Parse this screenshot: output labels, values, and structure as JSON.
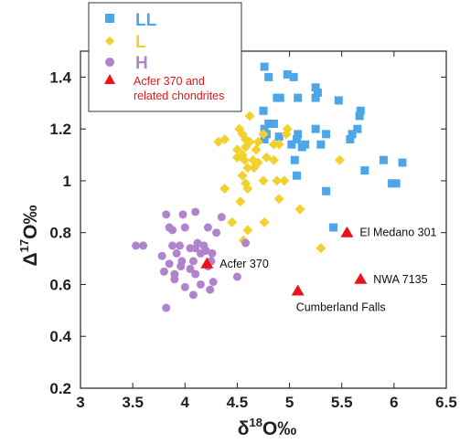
{
  "chart_data": {
    "type": "scatter",
    "xlim": [
      3,
      6.5
    ],
    "ylim": [
      0.2,
      1.5
    ],
    "x_ticks": [
      "3",
      "3.5",
      "4",
      "4.5",
      "5",
      "5.5",
      "6",
      "6.5"
    ],
    "y_ticks": [
      "0.2",
      "0.4",
      "0.6",
      "0.8",
      "1",
      "1.2",
      "1.4"
    ],
    "xlabel": {
      "symbol": "δ",
      "sup": "18",
      "text": "O‰"
    },
    "ylabel": {
      "symbol": "Δ",
      "sup": "17",
      "text": "O‰"
    },
    "grid": false,
    "legend_position": "top-left",
    "series": [
      {
        "name": "LL",
        "marker": "square",
        "color": "#4da6e8",
        "points": [
          [
            4.76,
            1.44
          ],
          [
            4.8,
            1.4
          ],
          [
            4.91,
            1.32
          ],
          [
            4.98,
            1.41
          ],
          [
            5.04,
            1.4
          ],
          [
            4.88,
            1.32
          ],
          [
            5.08,
            1.32
          ],
          [
            5.25,
            1.36
          ],
          [
            5.27,
            1.34
          ],
          [
            5.25,
            1.32
          ],
          [
            5.47,
            1.31
          ],
          [
            5.68,
            1.27
          ],
          [
            5.67,
            1.25
          ],
          [
            5.6,
            1.18
          ],
          [
            5.65,
            1.2
          ],
          [
            4.75,
            1.27
          ],
          [
            4.76,
            1.2
          ],
          [
            4.8,
            1.22
          ],
          [
            4.85,
            1.22
          ],
          [
            4.76,
            1.16
          ],
          [
            4.78,
            1.18
          ],
          [
            4.9,
            1.17
          ],
          [
            5.02,
            1.14
          ],
          [
            5.07,
            1.16
          ],
          [
            5.08,
            1.18
          ],
          [
            5.12,
            1.13
          ],
          [
            5.15,
            1.14
          ],
          [
            5.25,
            1.2
          ],
          [
            5.35,
            1.18
          ],
          [
            5.58,
            1.16
          ],
          [
            5.3,
            1.14
          ],
          [
            5.05,
            1.08
          ],
          [
            5.07,
            1.02
          ],
          [
            5.72,
            1.04
          ],
          [
            5.9,
            1.08
          ],
          [
            6.08,
            1.07
          ],
          [
            5.98,
            0.99
          ],
          [
            6.02,
            0.99
          ],
          [
            5.35,
            0.96
          ],
          [
            5.42,
            0.82
          ]
        ]
      },
      {
        "name": "L",
        "marker": "diamond",
        "color": "#f2d12e",
        "points": [
          [
            4.62,
            1.25
          ],
          [
            4.52,
            1.2
          ],
          [
            4.55,
            1.18
          ],
          [
            4.58,
            1.16
          ],
          [
            4.32,
            1.15
          ],
          [
            4.38,
            1.16
          ],
          [
            4.62,
            1.15
          ],
          [
            4.7,
            1.15
          ],
          [
            4.75,
            1.18
          ],
          [
            4.98,
            1.2
          ],
          [
            4.97,
            1.18
          ],
          [
            4.5,
            1.12
          ],
          [
            4.55,
            1.1
          ],
          [
            4.58,
            1.13
          ],
          [
            4.68,
            1.12
          ],
          [
            4.85,
            1.14
          ],
          [
            4.9,
            1.14
          ],
          [
            4.5,
            1.09
          ],
          [
            4.57,
            1.08
          ],
          [
            4.65,
            1.08
          ],
          [
            4.7,
            1.07
          ],
          [
            4.78,
            1.09
          ],
          [
            4.85,
            1.08
          ],
          [
            5.48,
            1.08
          ],
          [
            4.6,
            1.05
          ],
          [
            4.66,
            1.05
          ],
          [
            4.55,
            1.02
          ],
          [
            4.75,
            1.0
          ],
          [
            4.88,
            1.0
          ],
          [
            4.95,
            1.0
          ],
          [
            4.58,
            0.99
          ],
          [
            4.6,
            0.97
          ],
          [
            4.38,
            0.97
          ],
          [
            4.9,
            0.93
          ],
          [
            4.53,
            0.92
          ],
          [
            4.76,
            0.84
          ],
          [
            4.45,
            0.84
          ],
          [
            5.1,
            0.89
          ],
          [
            4.56,
            0.77
          ],
          [
            4.6,
            0.81
          ],
          [
            5.3,
            0.74
          ]
        ]
      },
      {
        "name": "H",
        "marker": "circle",
        "color": "#b084cc",
        "points": [
          [
            3.82,
            0.87
          ],
          [
            3.98,
            0.87
          ],
          [
            4.1,
            0.88
          ],
          [
            4.35,
            0.86
          ],
          [
            3.85,
            0.82
          ],
          [
            3.88,
            0.81
          ],
          [
            4.0,
            0.82
          ],
          [
            4.22,
            0.82
          ],
          [
            4.3,
            0.8
          ],
          [
            3.53,
            0.75
          ],
          [
            3.6,
            0.75
          ],
          [
            3.88,
            0.75
          ],
          [
            3.95,
            0.75
          ],
          [
            4.05,
            0.74
          ],
          [
            4.12,
            0.76
          ],
          [
            4.18,
            0.75
          ],
          [
            4.1,
            0.74
          ],
          [
            4.15,
            0.72
          ],
          [
            4.2,
            0.73
          ],
          [
            4.26,
            0.72
          ],
          [
            3.92,
            0.72
          ],
          [
            4.58,
            0.76
          ],
          [
            3.78,
            0.71
          ],
          [
            3.97,
            0.69
          ],
          [
            4.08,
            0.69
          ],
          [
            4.25,
            0.69
          ],
          [
            3.85,
            0.68
          ],
          [
            3.96,
            0.67
          ],
          [
            4.05,
            0.66
          ],
          [
            3.8,
            0.65
          ],
          [
            3.9,
            0.64
          ],
          [
            4.1,
            0.64
          ],
          [
            4.22,
            0.67
          ],
          [
            4.5,
            0.63
          ],
          [
            4.27,
            0.61
          ],
          [
            4.15,
            0.6
          ],
          [
            3.9,
            0.62
          ],
          [
            4.0,
            0.59
          ],
          [
            4.08,
            0.56
          ],
          [
            4.24,
            0.58
          ],
          [
            3.82,
            0.51
          ]
        ]
      },
      {
        "name": "Acfer 370 and related chondrites",
        "marker": "triangle",
        "color": "#e8141b",
        "points": [
          [
            4.21,
            0.68
          ],
          [
            5.55,
            0.8
          ],
          [
            5.68,
            0.62
          ],
          [
            5.08,
            0.575
          ]
        ]
      }
    ],
    "annotations": [
      {
        "text": "Acfer 370",
        "x": 4.21,
        "y": 0.68
      },
      {
        "text": "El Medano 301",
        "x": 5.55,
        "y": 0.8
      },
      {
        "text": "NWA 7135",
        "x": 5.68,
        "y": 0.62
      },
      {
        "text": "Cumberland Falls",
        "x": 5.08,
        "y": 0.575
      }
    ],
    "legend": [
      {
        "label": "LL",
        "color": "#4da6e8",
        "marker": "square"
      },
      {
        "label": "L",
        "color": "#f2d12e",
        "marker": "diamond"
      },
      {
        "label": "H",
        "color": "#b084cc",
        "marker": "circle"
      },
      {
        "label_lines": [
          "Acfer 370 and",
          "related chondrites"
        ],
        "color": "#e8141b",
        "marker": "triangle"
      }
    ]
  }
}
